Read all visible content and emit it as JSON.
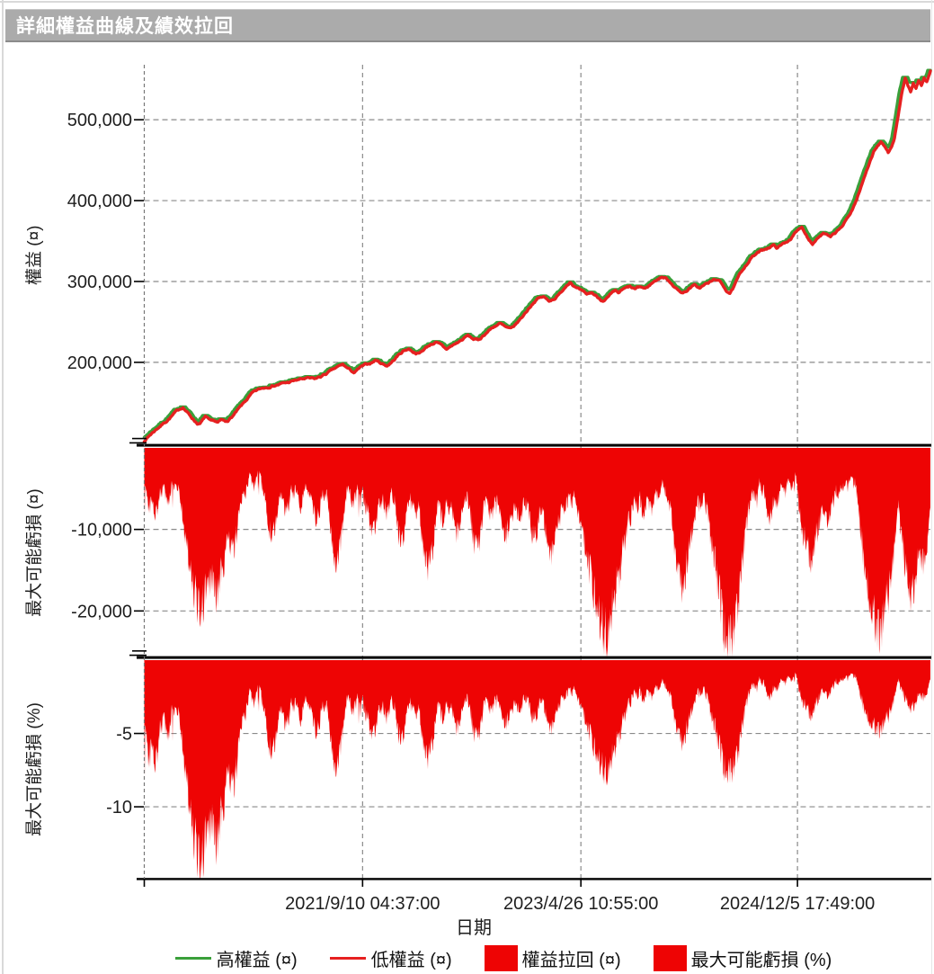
{
  "window": {
    "title": "詳細權益曲線及績效拉回"
  },
  "colors": {
    "high_equity": "#3aa03a",
    "low_equity": "#e62020",
    "drawdown_fill": "#ee0404",
    "grid": "#8a8a8a",
    "axis": "#000000",
    "titlebar_bg": "#ababab",
    "titlebar_text": "#ffffff"
  },
  "legend": {
    "items": [
      {
        "swatch": "line",
        "color": "#3aa03a",
        "label": "高權益 (¤)"
      },
      {
        "swatch": "line",
        "color": "#e62020",
        "label": "低權益 (¤)"
      },
      {
        "swatch": "rect",
        "color": "#ee0404",
        "label": "權益拉回 (¤)"
      },
      {
        "swatch": "rect",
        "color": "#ee0404",
        "label": "最大可能虧損 (%)"
      }
    ]
  },
  "chart_data": {
    "type": "line",
    "xlabel": "日期",
    "xticks": [
      {
        "t": 0.2777,
        "label": "2021/9/10 04:37:00"
      },
      {
        "t": 0.5554,
        "label": "2023/4/26 10:55:00"
      },
      {
        "t": 0.8309,
        "label": "2024/12/5 17:49:00"
      }
    ],
    "panels": [
      {
        "id": "equity",
        "ylabel": "權益 (¤)",
        "ylim_thousand": [
          97,
          568
        ],
        "yticks": [
          {
            "v": 500,
            "label": "500,000"
          },
          {
            "v": 400,
            "label": "400,000"
          },
          {
            "v": 300,
            "label": "300,000"
          },
          {
            "v": 200,
            "label": "200,000"
          }
        ],
        "series": [
          "高權益 (¤)",
          "低權益 (¤)"
        ]
      },
      {
        "id": "drawdown_currency",
        "ylabel": "最大可能虧損 (¤)",
        "ylim": [
          0,
          -25700
        ],
        "yticks": [
          {
            "v": -10000,
            "label": "-10,000"
          },
          {
            "v": -20000,
            "label": "-20,000"
          }
        ],
        "series": [
          "權益拉回 (¤)"
        ]
      },
      {
        "id": "drawdown_percent",
        "ylabel": "最大可能虧損 (%)",
        "ylim": [
          0,
          -15
        ],
        "yticks": [
          {
            "v": -5,
            "label": "-5"
          },
          {
            "v": -10,
            "label": "-10"
          }
        ],
        "series": [
          "最大可能虧損 (%)"
        ]
      }
    ],
    "equity_unit": "thousand ¤",
    "equity_anchors": [
      [
        0.0,
        103
      ],
      [
        0.0091,
        112
      ],
      [
        0.0183,
        120
      ],
      [
        0.0274,
        127
      ],
      [
        0.0354,
        134
      ],
      [
        0.0423,
        140
      ],
      [
        0.0491,
        145
      ],
      [
        0.0549,
        138
      ],
      [
        0.0594,
        133
      ],
      [
        0.064,
        128
      ],
      [
        0.0674,
        125
      ],
      [
        0.0709,
        124
      ],
      [
        0.0743,
        128
      ],
      [
        0.0777,
        133
      ],
      [
        0.0811,
        129
      ],
      [
        0.0846,
        126
      ],
      [
        0.0891,
        127
      ],
      [
        0.0937,
        125
      ],
      [
        0.0983,
        128
      ],
      [
        0.1029,
        126
      ],
      [
        0.1074,
        129
      ],
      [
        0.112,
        133
      ],
      [
        0.1166,
        138
      ],
      [
        0.1211,
        143
      ],
      [
        0.1257,
        148
      ],
      [
        0.1314,
        155
      ],
      [
        0.1371,
        161
      ],
      [
        0.144,
        165
      ],
      [
        0.1509,
        168
      ],
      [
        0.16,
        171
      ],
      [
        0.1714,
        173
      ],
      [
        0.1829,
        175
      ],
      [
        0.1943,
        178
      ],
      [
        0.2057,
        180
      ],
      [
        0.2171,
        179
      ],
      [
        0.2263,
        183
      ],
      [
        0.2354,
        188
      ],
      [
        0.2446,
        193
      ],
      [
        0.2526,
        197
      ],
      [
        0.2606,
        191
      ],
      [
        0.2674,
        187
      ],
      [
        0.2743,
        193
      ],
      [
        0.2811,
        196
      ],
      [
        0.288,
        199
      ],
      [
        0.2949,
        203
      ],
      [
        0.3017,
        199
      ],
      [
        0.3086,
        196
      ],
      [
        0.3154,
        201
      ],
      [
        0.3223,
        208
      ],
      [
        0.3291,
        214
      ],
      [
        0.336,
        217
      ],
      [
        0.3429,
        213
      ],
      [
        0.3497,
        211
      ],
      [
        0.3566,
        217
      ],
      [
        0.3634,
        222
      ],
      [
        0.3703,
        225
      ],
      [
        0.3771,
        221
      ],
      [
        0.384,
        216
      ],
      [
        0.3909,
        220
      ],
      [
        0.3977,
        224
      ],
      [
        0.4046,
        228
      ],
      [
        0.4114,
        233
      ],
      [
        0.4183,
        229
      ],
      [
        0.4251,
        227
      ],
      [
        0.432,
        234
      ],
      [
        0.4389,
        240
      ],
      [
        0.4457,
        245
      ],
      [
        0.4526,
        248
      ],
      [
        0.4594,
        243
      ],
      [
        0.4663,
        240
      ],
      [
        0.4731,
        247
      ],
      [
        0.48,
        255
      ],
      [
        0.4869,
        264
      ],
      [
        0.4937,
        273
      ],
      [
        0.5006,
        279
      ],
      [
        0.5074,
        281
      ],
      [
        0.5143,
        276
      ],
      [
        0.5211,
        279
      ],
      [
        0.528,
        284
      ],
      [
        0.5349,
        293
      ],
      [
        0.5417,
        301
      ],
      [
        0.5486,
        293
      ],
      [
        0.5554,
        288
      ],
      [
        0.5623,
        283
      ],
      [
        0.5691,
        286
      ],
      [
        0.576,
        281
      ],
      [
        0.5806,
        278
      ],
      [
        0.5851,
        277
      ],
      [
        0.5897,
        280
      ],
      [
        0.5943,
        284
      ],
      [
        0.5989,
        287
      ],
      [
        0.6034,
        285
      ],
      [
        0.608,
        289
      ],
      [
        0.6126,
        291
      ],
      [
        0.6171,
        293
      ],
      [
        0.624,
        290
      ],
      [
        0.6309,
        293
      ],
      [
        0.6377,
        291
      ],
      [
        0.6446,
        297
      ],
      [
        0.6514,
        302
      ],
      [
        0.6583,
        306
      ],
      [
        0.6651,
        303
      ],
      [
        0.672,
        297
      ],
      [
        0.6789,
        289
      ],
      [
        0.6857,
        286
      ],
      [
        0.6926,
        291
      ],
      [
        0.6994,
        295
      ],
      [
        0.7063,
        292
      ],
      [
        0.7131,
        296
      ],
      [
        0.72,
        299
      ],
      [
        0.7269,
        303
      ],
      [
        0.7314,
        300
      ],
      [
        0.736,
        295
      ],
      [
        0.7406,
        289
      ],
      [
        0.7451,
        286
      ],
      [
        0.7497,
        292
      ],
      [
        0.7543,
        302
      ],
      [
        0.7589,
        310
      ],
      [
        0.7634,
        318
      ],
      [
        0.768,
        324
      ],
      [
        0.7726,
        330
      ],
      [
        0.7771,
        333
      ],
      [
        0.7817,
        336
      ],
      [
        0.7863,
        338
      ],
      [
        0.7909,
        341
      ],
      [
        0.7954,
        343
      ],
      [
        0.8,
        345
      ],
      [
        0.8046,
        342
      ],
      [
        0.8091,
        344
      ],
      [
        0.8137,
        347
      ],
      [
        0.8183,
        350
      ],
      [
        0.8229,
        354
      ],
      [
        0.8274,
        359
      ],
      [
        0.832,
        363
      ],
      [
        0.8366,
        367
      ],
      [
        0.8411,
        360
      ],
      [
        0.8457,
        352
      ],
      [
        0.8503,
        348
      ],
      [
        0.8549,
        353
      ],
      [
        0.8594,
        357
      ],
      [
        0.864,
        360
      ],
      [
        0.8686,
        357
      ],
      [
        0.8731,
        354
      ],
      [
        0.8777,
        358
      ],
      [
        0.8823,
        362
      ],
      [
        0.8869,
        367
      ],
      [
        0.8914,
        373
      ],
      [
        0.896,
        380
      ],
      [
        0.9006,
        389
      ],
      [
        0.9051,
        399
      ],
      [
        0.9097,
        411
      ],
      [
        0.9143,
        424
      ],
      [
        0.9189,
        438
      ],
      [
        0.9234,
        450
      ],
      [
        0.928,
        461
      ],
      [
        0.9326,
        468
      ],
      [
        0.9371,
        472
      ],
      [
        0.9417,
        467
      ],
      [
        0.9463,
        459
      ],
      [
        0.9509,
        469
      ],
      [
        0.9543,
        479
      ],
      [
        0.9577,
        497
      ],
      [
        0.9611,
        518
      ],
      [
        0.9646,
        538
      ],
      [
        0.968,
        551
      ],
      [
        0.9714,
        541
      ],
      [
        0.9749,
        533
      ],
      [
        0.9783,
        544
      ],
      [
        0.9817,
        537
      ],
      [
        0.9851,
        547
      ],
      [
        0.9886,
        541
      ],
      [
        0.992,
        551
      ],
      [
        0.9954,
        546
      ],
      [
        0.9989,
        557
      ],
      [
        1.0,
        561
      ]
    ],
    "drawdown_events_currency": [
      [
        0.0023,
        -4000
      ],
      [
        0.0069,
        -7500
      ],
      [
        0.0137,
        -8500
      ],
      [
        0.0206,
        -6000
      ],
      [
        0.0297,
        -7000
      ],
      [
        0.04,
        -5500
      ],
      [
        0.0514,
        -9000
      ],
      [
        0.0571,
        -14000
      ],
      [
        0.064,
        -18500
      ],
      [
        0.0709,
        -21500
      ],
      [
        0.0777,
        -16000
      ],
      [
        0.0846,
        -17500
      ],
      [
        0.0914,
        -19000
      ],
      [
        0.0983,
        -15500
      ],
      [
        0.1051,
        -13000
      ],
      [
        0.112,
        -13500
      ],
      [
        0.1189,
        -9000
      ],
      [
        0.128,
        -6000
      ],
      [
        0.1394,
        -5000
      ],
      [
        0.1543,
        -6500
      ],
      [
        0.1623,
        -11500
      ],
      [
        0.1714,
        -7000
      ],
      [
        0.1806,
        -8200
      ],
      [
        0.1897,
        -6000
      ],
      [
        0.1989,
        -7600
      ],
      [
        0.2103,
        -6800
      ],
      [
        0.2194,
        -9200
      ],
      [
        0.2286,
        -6400
      ],
      [
        0.2377,
        -8000
      ],
      [
        0.2446,
        -14500
      ],
      [
        0.2537,
        -7000
      ],
      [
        0.2651,
        -7200
      ],
      [
        0.2743,
        -6000
      ],
      [
        0.2834,
        -8000
      ],
      [
        0.2903,
        -11000
      ],
      [
        0.2994,
        -7500
      ],
      [
        0.3086,
        -8500
      ],
      [
        0.3177,
        -6500
      ],
      [
        0.3269,
        -12000
      ],
      [
        0.336,
        -7000
      ],
      [
        0.3451,
        -8800
      ],
      [
        0.3543,
        -9500
      ],
      [
        0.3611,
        -15500
      ],
      [
        0.3703,
        -7400
      ],
      [
        0.3794,
        -9200
      ],
      [
        0.3886,
        -8000
      ],
      [
        0.3977,
        -11200
      ],
      [
        0.4069,
        -7000
      ],
      [
        0.416,
        -8400
      ],
      [
        0.4229,
        -13200
      ],
      [
        0.432,
        -7600
      ],
      [
        0.4411,
        -8800
      ],
      [
        0.4503,
        -7000
      ],
      [
        0.4594,
        -11500
      ],
      [
        0.4686,
        -8500
      ],
      [
        0.4777,
        -9200
      ],
      [
        0.4869,
        -7800
      ],
      [
        0.496,
        -11800
      ],
      [
        0.5051,
        -8600
      ],
      [
        0.5166,
        -14000
      ],
      [
        0.5257,
        -10000
      ],
      [
        0.5349,
        -8000
      ],
      [
        0.544,
        -7000
      ],
      [
        0.5543,
        -9000
      ],
      [
        0.5623,
        -13000
      ],
      [
        0.5691,
        -16500
      ],
      [
        0.576,
        -20000
      ],
      [
        0.5829,
        -23000
      ],
      [
        0.5874,
        -24300
      ],
      [
        0.5943,
        -21000
      ],
      [
        0.6011,
        -17000
      ],
      [
        0.608,
        -13000
      ],
      [
        0.6171,
        -9500
      ],
      [
        0.6263,
        -7600
      ],
      [
        0.6354,
        -8400
      ],
      [
        0.6446,
        -8000
      ],
      [
        0.6537,
        -6400
      ],
      [
        0.6629,
        -5600
      ],
      [
        0.6697,
        -8000
      ],
      [
        0.6766,
        -12000
      ],
      [
        0.6834,
        -18000
      ],
      [
        0.6903,
        -14000
      ],
      [
        0.6994,
        -9000
      ],
      [
        0.7086,
        -7400
      ],
      [
        0.7177,
        -8600
      ],
      [
        0.7257,
        -14000
      ],
      [
        0.7326,
        -18000
      ],
      [
        0.7383,
        -21500
      ],
      [
        0.7429,
        -25400
      ],
      [
        0.7486,
        -23000
      ],
      [
        0.7543,
        -17500
      ],
      [
        0.7611,
        -12000
      ],
      [
        0.768,
        -8000
      ],
      [
        0.7771,
        -6500
      ],
      [
        0.7863,
        -5600
      ],
      [
        0.7954,
        -9000
      ],
      [
        0.8046,
        -7000
      ],
      [
        0.8137,
        -6000
      ],
      [
        0.8229,
        -5000
      ],
      [
        0.832,
        -4800
      ],
      [
        0.8411,
        -12000
      ],
      [
        0.848,
        -14500
      ],
      [
        0.8549,
        -11000
      ],
      [
        0.8617,
        -8000
      ],
      [
        0.8686,
        -9500
      ],
      [
        0.8754,
        -7000
      ],
      [
        0.8823,
        -6000
      ],
      [
        0.8891,
        -5200
      ],
      [
        0.896,
        -4600
      ],
      [
        0.9029,
        -4200
      ],
      [
        0.9097,
        -5400
      ],
      [
        0.9166,
        -6200
      ],
      [
        0.9234,
        -19000
      ],
      [
        0.9303,
        -22000
      ],
      [
        0.9349,
        -24200
      ],
      [
        0.9406,
        -21500
      ],
      [
        0.9463,
        -17000
      ],
      [
        0.952,
        -10000
      ],
      [
        0.9589,
        -6000
      ],
      [
        0.9657,
        -8000
      ],
      [
        0.9714,
        -16000
      ],
      [
        0.976,
        -19000
      ],
      [
        0.9806,
        -13000
      ],
      [
        0.9851,
        -9500
      ],
      [
        0.9897,
        -15000
      ],
      [
        0.9943,
        -11000
      ],
      [
        0.9989,
        -7000
      ]
    ]
  }
}
